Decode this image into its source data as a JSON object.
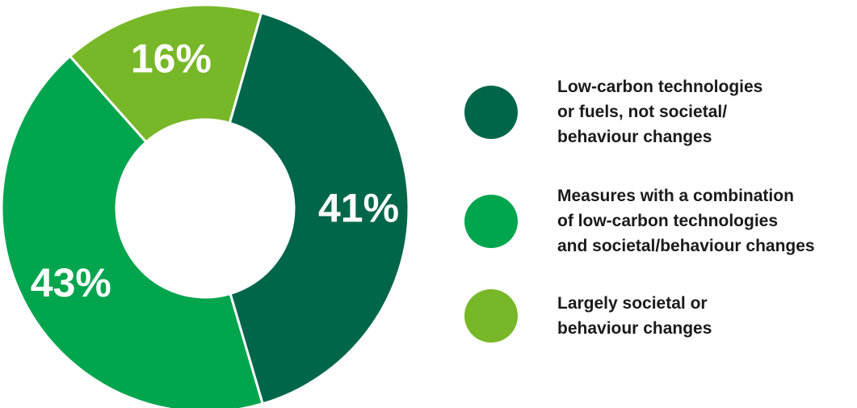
{
  "chart_data": {
    "type": "pie",
    "donut": true,
    "slices": [
      {
        "name": "Low-carbon technologies\nor fuels, not societal/\nbehaviour changes",
        "value": 41,
        "label": "41%",
        "color": "#00664a"
      },
      {
        "name": "Measures with a combination\nof low-carbon technologies\nand societal/behaviour changes",
        "value": 43,
        "label": "43%",
        "color": "#00a54e"
      },
      {
        "name": "Largely societal or\nbehaviour changes",
        "value": 16,
        "label": "16%",
        "color": "#78b828"
      }
    ],
    "legend_position": "right"
  }
}
